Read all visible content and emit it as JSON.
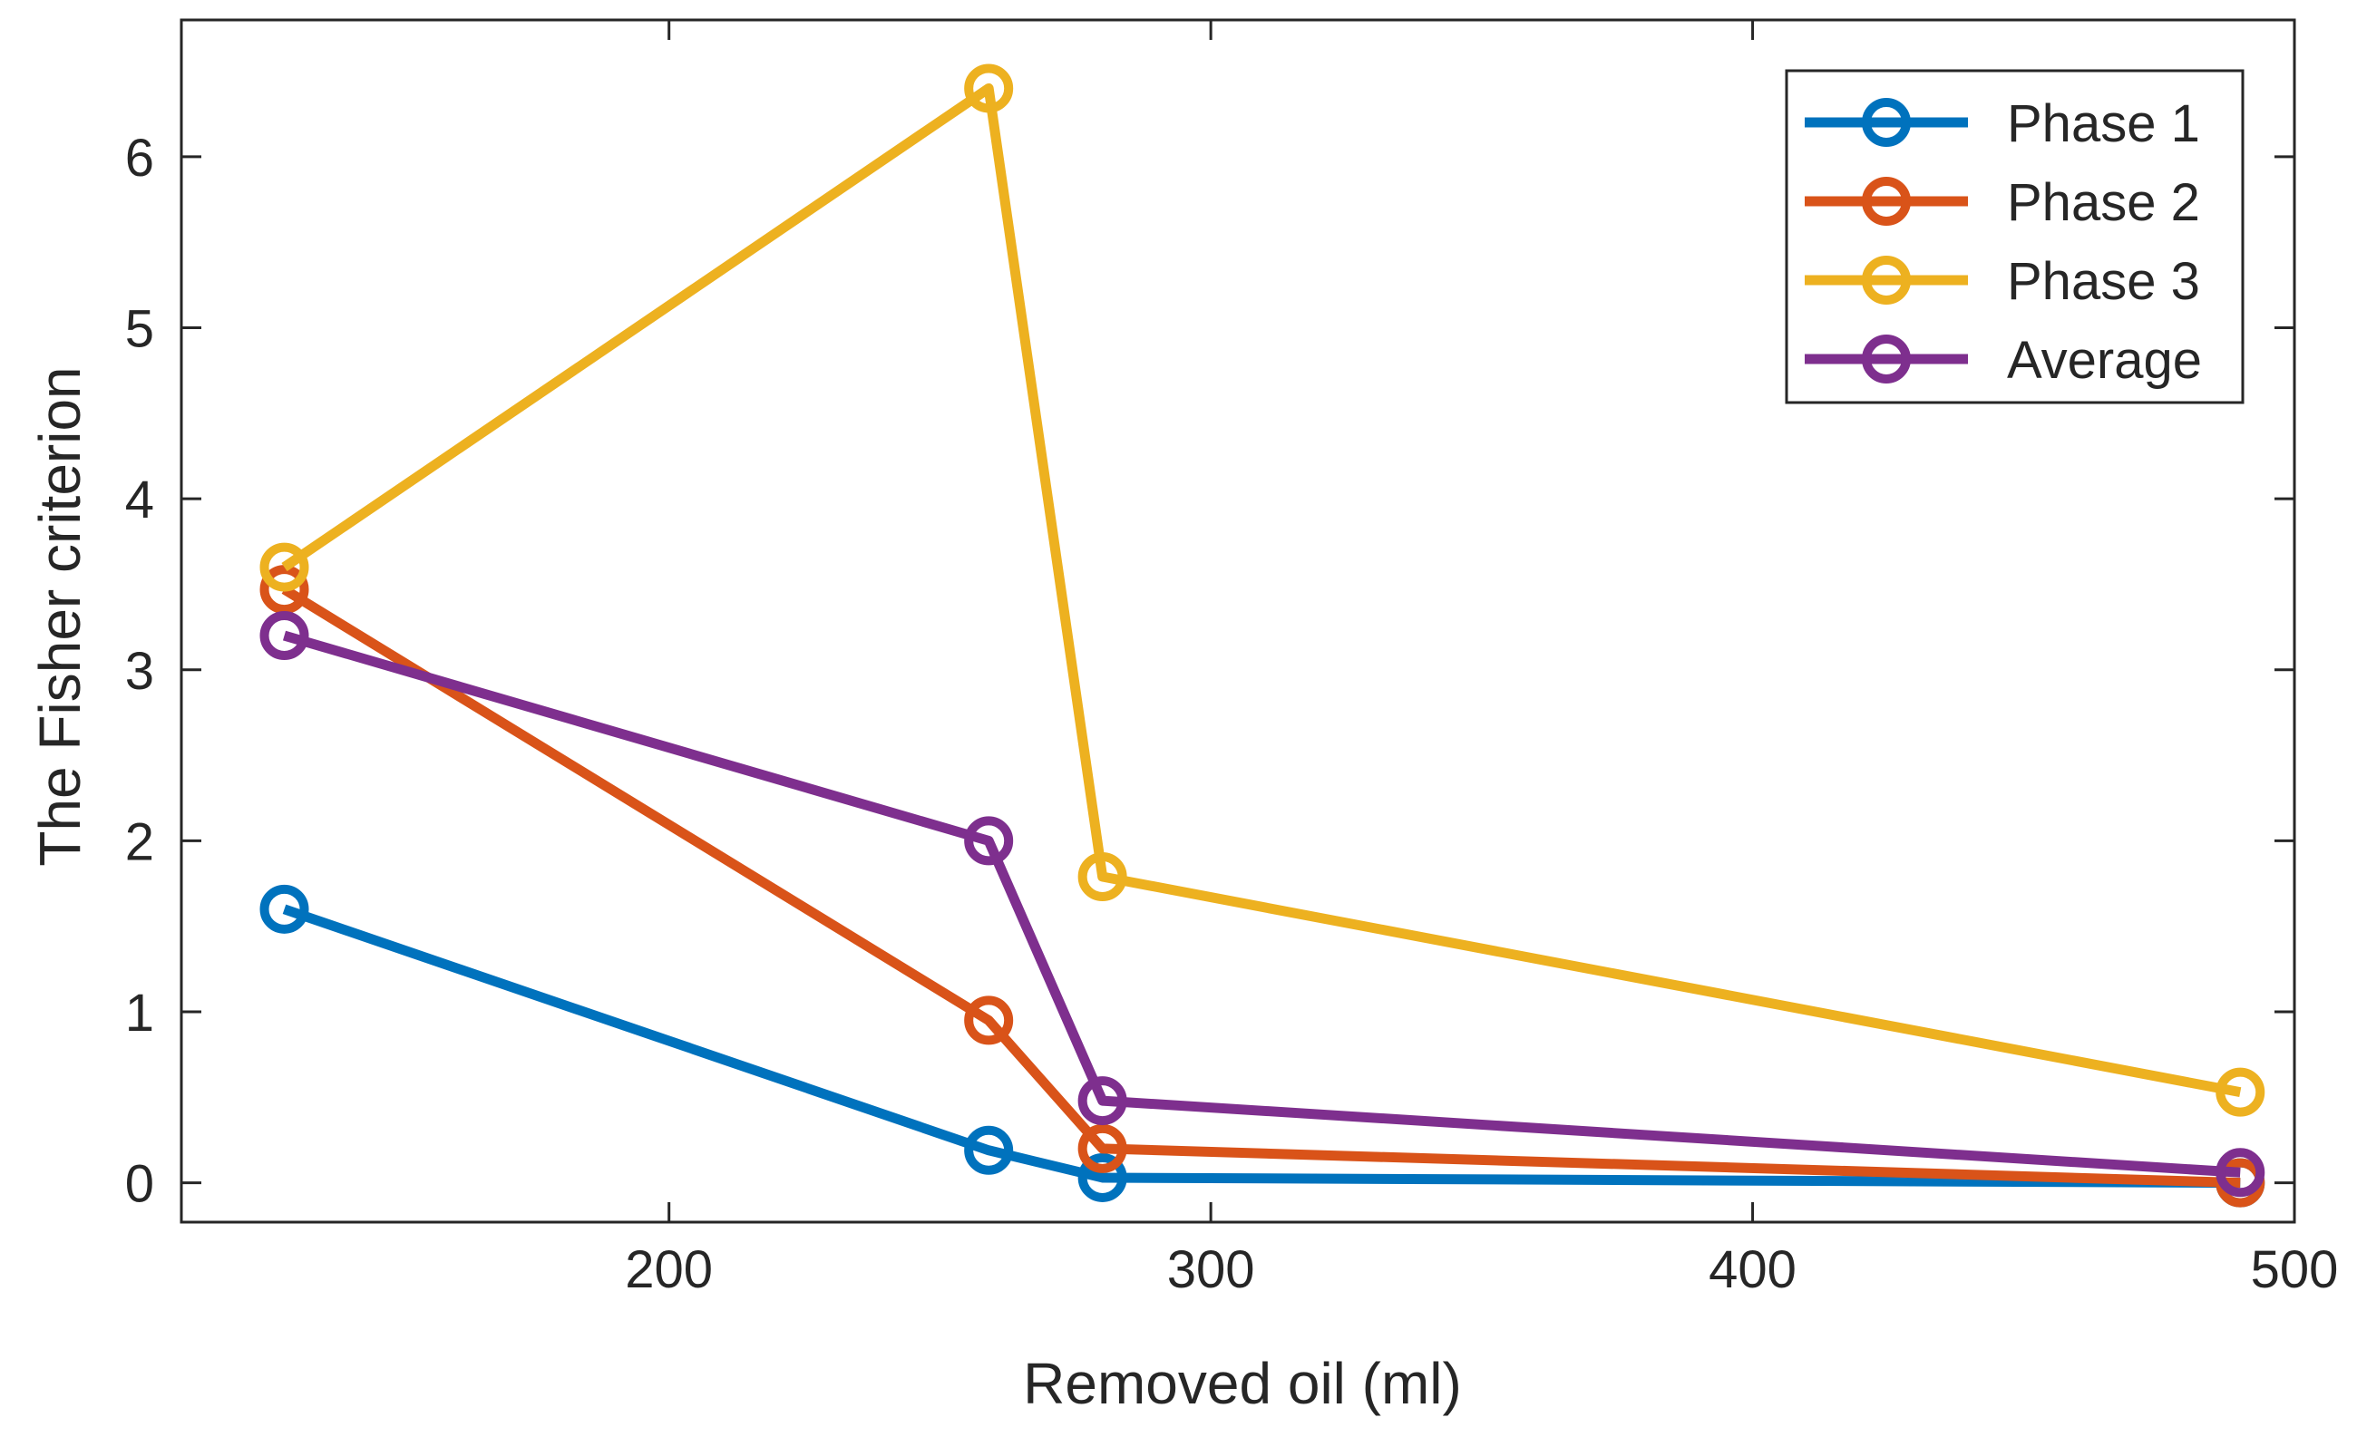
{
  "chart_data": {
    "type": "line",
    "title": "",
    "xlabel": "Removed oil (ml)",
    "ylabel": "The Fisher criterion",
    "xlim": [
      110,
      500
    ],
    "ylim": [
      -0.23,
      6.8
    ],
    "xticks": [
      200,
      300,
      400,
      500
    ],
    "yticks": [
      0,
      1,
      2,
      3,
      4,
      5,
      6
    ],
    "grid": false,
    "legend_position": "top-right",
    "series": [
      {
        "name": "Phase 1",
        "color": "#0072BD",
        "x": [
          129,
          259,
          280,
          490
        ],
        "y": [
          1.6,
          0.19,
          0.03,
          0.0
        ]
      },
      {
        "name": "Phase 2",
        "color": "#D95319",
        "x": [
          129,
          259,
          280,
          490
        ],
        "y": [
          3.47,
          0.95,
          0.2,
          0.0
        ]
      },
      {
        "name": "Phase 3",
        "color": "#EDB120",
        "x": [
          129,
          259,
          280,
          490
        ],
        "y": [
          3.6,
          6.4,
          1.79,
          0.53
        ]
      },
      {
        "name": "Average",
        "color": "#7E2F8E",
        "x": [
          129,
          259,
          280,
          490
        ],
        "y": [
          3.2,
          2.0,
          0.48,
          0.06
        ]
      }
    ]
  }
}
